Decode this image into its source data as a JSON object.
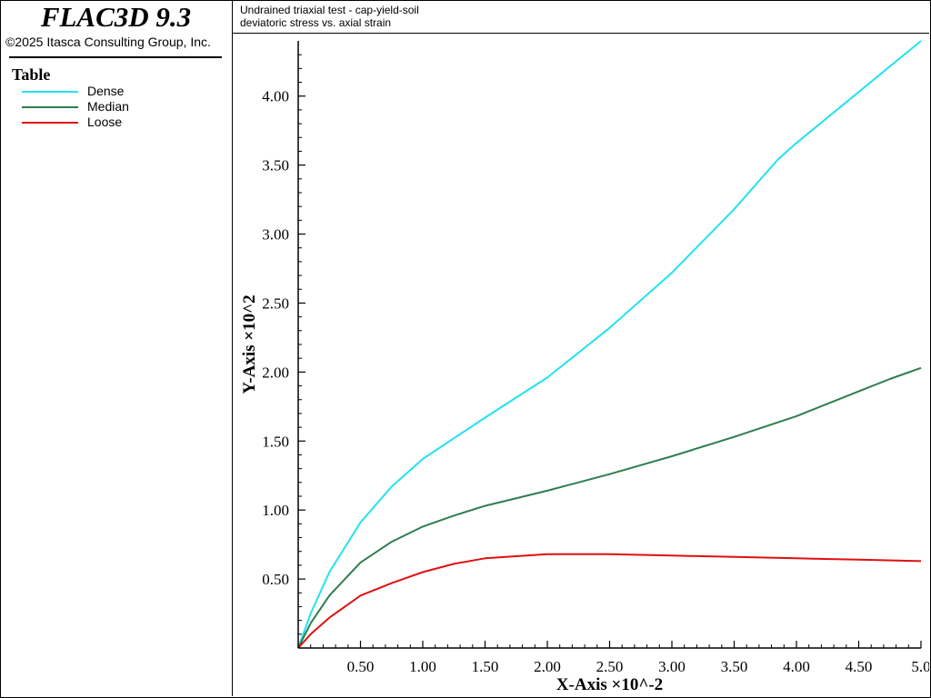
{
  "app": {
    "title": "FLAC3D 9.3",
    "copyright": "©2025 Itasca Consulting Group, Inc."
  },
  "legend": {
    "title": "Table",
    "items": [
      {
        "label": "Dense",
        "color": "#22e2f0"
      },
      {
        "label": "Median",
        "color": "#2e7d4f"
      },
      {
        "label": "Loose",
        "color": "#e01010"
      }
    ]
  },
  "header": {
    "title": "Undrained triaxial test - cap-yield-soil",
    "subtitle": "deviatoric stress vs. axial strain"
  },
  "chart_data": {
    "type": "line",
    "xlabel": "X-Axis ×10^-2",
    "ylabel": "Y-Axis ×10^2",
    "xlim": [
      0,
      5.0
    ],
    "ylim": [
      0,
      4.4
    ],
    "xticks": [
      "0.50",
      "1.00",
      "1.50",
      "2.00",
      "2.50",
      "3.00",
      "3.50",
      "4.00",
      "4.50",
      "5.0"
    ],
    "yticks": [
      "0.50",
      "1.00",
      "1.50",
      "2.00",
      "2.50",
      "3.00",
      "3.50",
      "4.00"
    ],
    "grid": false,
    "series": [
      {
        "name": "Dense",
        "color": "#22e2f0",
        "x": [
          0,
          0.1,
          0.25,
          0.5,
          0.75,
          1.0,
          1.25,
          1.5,
          2.0,
          2.5,
          3.0,
          3.5,
          3.85,
          4.0,
          4.5,
          5.0
        ],
        "y": [
          0,
          0.25,
          0.55,
          0.91,
          1.17,
          1.37,
          1.52,
          1.67,
          1.96,
          2.32,
          2.72,
          3.18,
          3.54,
          3.66,
          4.03,
          4.4
        ]
      },
      {
        "name": "Median",
        "color": "#2e7d4f",
        "x": [
          0,
          0.1,
          0.25,
          0.5,
          0.75,
          1.0,
          1.25,
          1.5,
          2.0,
          2.5,
          3.0,
          3.5,
          4.0,
          4.5,
          4.75,
          5.0
        ],
        "y": [
          0,
          0.18,
          0.38,
          0.62,
          0.77,
          0.88,
          0.96,
          1.03,
          1.14,
          1.26,
          1.39,
          1.53,
          1.68,
          1.86,
          1.95,
          2.03
        ]
      },
      {
        "name": "Loose",
        "color": "#e01010",
        "x": [
          0,
          0.1,
          0.25,
          0.5,
          0.75,
          1.0,
          1.25,
          1.5,
          2.0,
          2.5,
          3.0,
          3.5,
          4.0,
          4.5,
          5.0
        ],
        "y": [
          0,
          0.1,
          0.22,
          0.38,
          0.47,
          0.55,
          0.61,
          0.65,
          0.68,
          0.68,
          0.67,
          0.66,
          0.65,
          0.64,
          0.63
        ]
      }
    ]
  }
}
